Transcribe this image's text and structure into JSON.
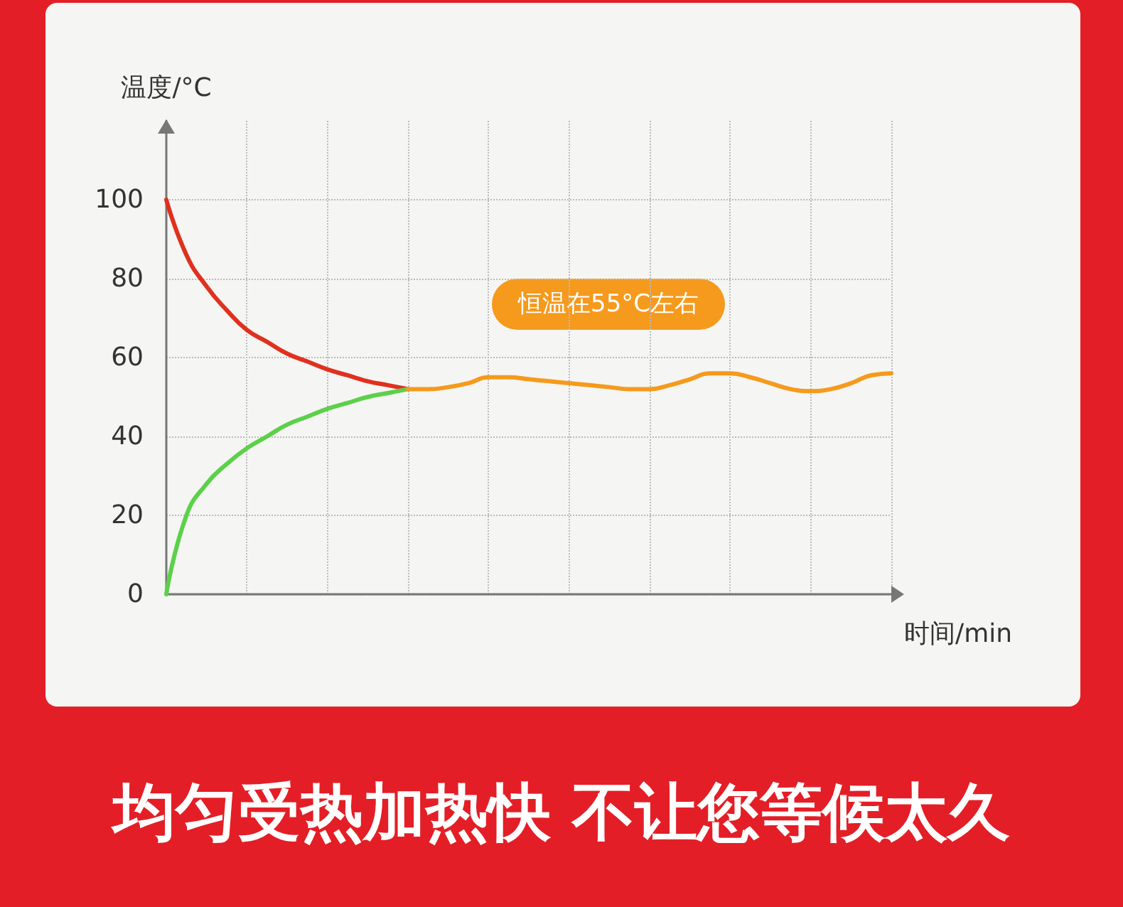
{
  "chart_data": {
    "type": "line",
    "title": "均匀受热加热快 不让您等候太久",
    "xlabel": "时间/min",
    "ylabel": "温度/°C",
    "categories": [
      null,
      null,
      null,
      null,
      null,
      null,
      null,
      null,
      null,
      null,
      null,
      null,
      null,
      null,
      null,
      null,
      null,
      null,
      null,
      null,
      null,
      null,
      null,
      null,
      null,
      null,
      null,
      null,
      null,
      null,
      null,
      null,
      null,
      null,
      null,
      null,
      null
    ],
    "series": [
      {
        "color": "#e0301e",
        "values": [
          100,
          86,
          78,
          72,
          67,
          64,
          61,
          59,
          57,
          55.5,
          54,
          53,
          52,
          null,
          null,
          null,
          null,
          null,
          null,
          null,
          null,
          null,
          null,
          null,
          null,
          null,
          null,
          null,
          null,
          null,
          null,
          null,
          null,
          null,
          null,
          null,
          null
        ]
      },
      {
        "color": "#5cd04a",
        "values": [
          0,
          20,
          28,
          33,
          37,
          40,
          43,
          45,
          47,
          48.5,
          50,
          51,
          52,
          null,
          null,
          null,
          null,
          null,
          null,
          null,
          null,
          null,
          null,
          null,
          null,
          null,
          null,
          null,
          null,
          null,
          null,
          null,
          null,
          null,
          null,
          null,
          null
        ]
      },
      {
        "color": "#f59a1c",
        "values": [
          null,
          null,
          null,
          null,
          null,
          null,
          null,
          null,
          null,
          null,
          null,
          null,
          52,
          52,
          52.5,
          53.5,
          55,
          55,
          54.5,
          54,
          53.5,
          53,
          52.5,
          52,
          52,
          53,
          54.5,
          56,
          56,
          55,
          53.5,
          52,
          51.5,
          52,
          53.5,
          55.5,
          56
        ]
      }
    ],
    "annotations": [
      "恒温在55°C左右"
    ],
    "ylim": [
      0,
      120
    ],
    "yticks": [
      0,
      20,
      40,
      60,
      80,
      100
    ],
    "grid": true
  }
}
